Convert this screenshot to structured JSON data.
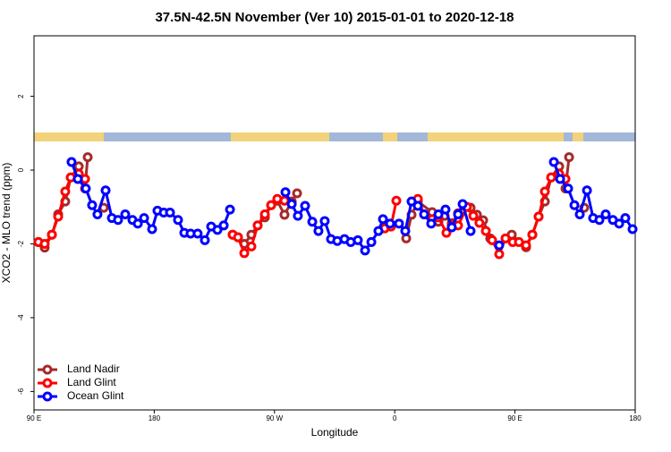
{
  "chart_data": {
    "type": "line",
    "title": "37.5N-42.5N November (Ver 10)   2015-01-01 to 2020-12-18",
    "x_label": "Longitude",
    "y_label": "XCO2 - MLO trend (ppm)",
    "xlim": [
      90,
      540
    ],
    "ylim": [
      -6.5,
      3.64
    ],
    "xticks": [
      {
        "value": 90,
        "label": "90 E"
      },
      180,
      {
        "value": 270,
        "label": "90 W"
      },
      {
        "value": 360,
        "label": "0"
      },
      {
        "value": 450,
        "label": "90 E"
      },
      {
        "value": 540,
        "label": "180"
      }
    ],
    "yticks": [
      -6,
      -4,
      -2,
      0,
      2
    ],
    "legend": "bottom-left",
    "series": [
      {
        "name": "Land Nadir",
        "color": "#a52a2a",
        "x": [
          93.3,
          98.0,
          103.4,
          108.1,
          113.4,
          117.5,
          123.5,
          128.2,
          130.2,
          null,
          142.2,
          null,
          238.7,
          242.7,
          247.4,
          252.7,
          257.4,
          262.8,
          267.5,
          272.1,
          277.5,
          282.9,
          286.9,
          null,
          368.6,
          372.6,
          377.3,
          388.0,
          392.7,
          397.4,
          402.7,
          407.4,
          412.1,
          416.8,
          421.5,
          426.2,
          431.5,
          null,
          447.6,
          458.3,
          463.0,
          467.7,
          472.4,
          477.1,
          483.1,
          487.8,
          490.5,
          null,
          501.8
        ],
        "values": [
          -1.95,
          -2.1,
          -1.75,
          -1.2,
          -0.85,
          -0.2,
          0.1,
          -0.5,
          0.35,
          null,
          -1.02,
          null,
          -1.75,
          -1.82,
          -2.0,
          -1.75,
          -1.5,
          -1.28,
          -0.95,
          -0.83,
          -1.21,
          -0.85,
          -0.63,
          null,
          -1.85,
          -1.21,
          -0.85,
          -1.14,
          -1.4,
          -1.24,
          -1.44,
          -1.17,
          -0.97,
          -1.02,
          -1.21,
          -1.36,
          -1.85,
          null,
          -1.75,
          -2.09,
          -1.75,
          -1.26,
          -0.85,
          -0.2,
          0.1,
          -0.5,
          0.35,
          null,
          -1.02
        ]
      },
      {
        "name": "Land Glint",
        "color": "#ff0000",
        "x": [
          93.3,
          98.0,
          103.4,
          108.1,
          113.4,
          117.5,
          123.5,
          128.2,
          null,
          238.7,
          242.7,
          247.4,
          252.7,
          257.4,
          262.8,
          267.5,
          272.1,
          277.5,
          null,
          352.5,
          357.2,
          361.2,
          null,
          377.3,
          382.0,
          388.0,
          392.7,
          398.7,
          402.7,
          407.4,
          414.1,
          418.8,
          423.4,
          428.2,
          432.9,
          438.2,
          442.9,
          448.3,
          453.0,
          458.3,
          463.0,
          467.7,
          472.4,
          477.1,
          483.1,
          487.8
        ],
        "values": [
          -1.95,
          -2.0,
          -1.75,
          -1.26,
          -0.58,
          -0.2,
          -0.1,
          -0.24,
          null,
          -1.75,
          -1.82,
          -2.25,
          -2.07,
          -1.5,
          -1.2,
          -0.95,
          -0.78,
          -0.83,
          null,
          -1.58,
          -1.53,
          -0.83,
          null,
          -0.78,
          -1.2,
          -1.33,
          -1.28,
          -1.7,
          -1.5,
          -1.5,
          -1.0,
          -1.24,
          -1.43,
          -1.65,
          -1.9,
          -2.28,
          -1.85,
          -1.95,
          -1.95,
          -2.04,
          -1.75,
          -1.26,
          -0.58,
          -0.2,
          -0.1,
          -0.24
        ]
      },
      {
        "name": "Ocean Glint",
        "color": "#0000ff",
        "x": [
          118.1,
          122.8,
          128.8,
          133.5,
          137.5,
          143.6,
          148.3,
          152.9,
          158.3,
          163.7,
          167.7,
          172.4,
          178.4,
          182.4,
          187.1,
          191.8,
          197.8,
          202.5,
          207.2,
          212.5,
          217.9,
          222.6,
          227.3,
          232.0,
          236.7,
          null,
          278.2,
          282.9,
          287.5,
          292.9,
          298.3,
          302.9,
          307.6,
          312.3,
          317.0,
          322.4,
          327.1,
          332.4,
          337.8,
          342.5,
          347.8,
          351.2,
          356.5,
          363.2,
          367.9,
          372.6,
          377.3,
          382.0,
          387.3,
          392.7,
          398.0,
          402.7,
          407.4,
          410.8,
          416.8,
          null,
          438.2,
          null,
          479.1,
          483.8,
          489.8,
          494.5,
          498.5,
          503.9,
          508.5,
          513.2,
          517.9,
          523.3,
          528.0,
          532.6,
          538.0
        ],
        "values": [
          0.22,
          -0.24,
          -0.5,
          -0.95,
          -1.2,
          -0.55,
          -1.3,
          -1.35,
          -1.2,
          -1.35,
          -1.45,
          -1.3,
          -1.6,
          -1.1,
          -1.15,
          -1.15,
          -1.35,
          -1.7,
          -1.72,
          -1.72,
          -1.9,
          -1.53,
          -1.62,
          -1.5,
          -1.07,
          null,
          -0.6,
          -0.92,
          -1.24,
          -0.97,
          -1.4,
          -1.65,
          -1.38,
          -1.87,
          -1.92,
          -1.87,
          -1.95,
          -1.9,
          -2.18,
          -1.95,
          -1.65,
          -1.33,
          -1.45,
          -1.45,
          -1.65,
          -0.85,
          -0.97,
          -1.2,
          -1.45,
          -1.2,
          -1.07,
          -1.55,
          -1.2,
          -0.92,
          -1.65,
          null,
          -2.04,
          null,
          0.22,
          -0.24,
          -0.5,
          -0.95,
          -1.2,
          -0.55,
          -1.3,
          -1.35,
          -1.2,
          -1.35,
          -1.45,
          -1.3,
          -1.6
        ]
      }
    ]
  }
}
